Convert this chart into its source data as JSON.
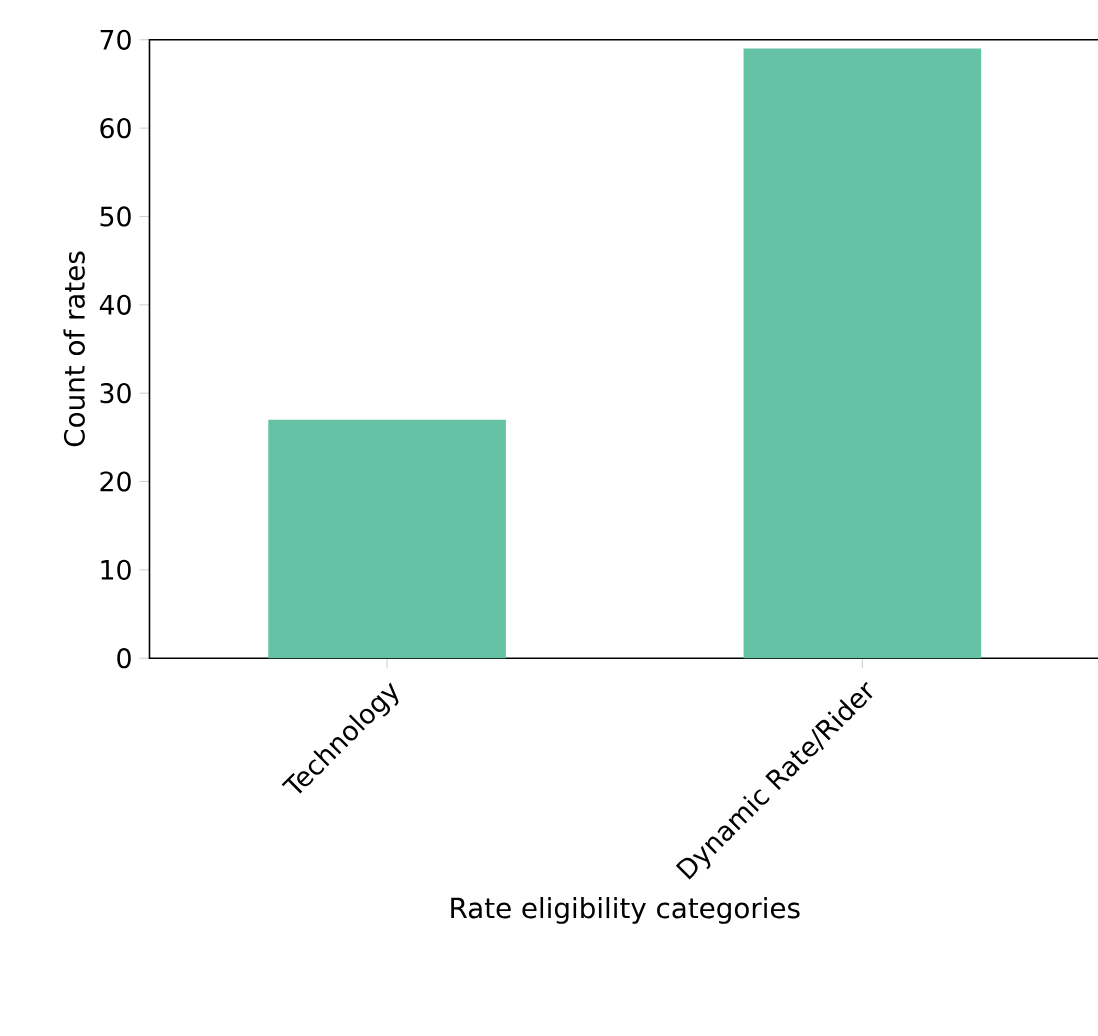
{
  "chart_data": {
    "type": "bar",
    "categories": [
      "Technology",
      "Dynamic Rate/Rider"
    ],
    "values": [
      27,
      69
    ],
    "color": "#66c2a5",
    "xlabel": "Rate eligibility categories",
    "ylabel": "Count of rates",
    "ylim": [
      0,
      70
    ],
    "yticks": [
      0,
      10,
      20,
      30,
      40,
      50,
      60,
      70
    ]
  }
}
